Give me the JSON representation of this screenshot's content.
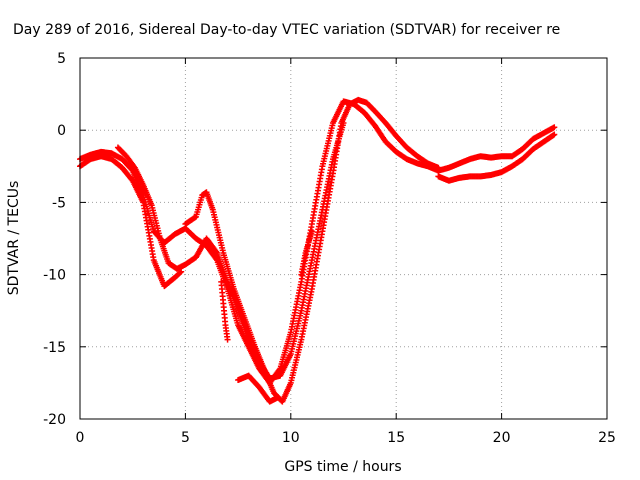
{
  "chart_data": {
    "type": "scatter",
    "title": "Day 289 of 2016, Sidereal Day-to-day VTEC variation (SDTVAR) for receiver re",
    "xlabel": "GPS time / hours",
    "ylabel": "SDTVAR / TECUs",
    "xlim": [
      0,
      25
    ],
    "ylim": [
      -20,
      5
    ],
    "xticks": [
      0,
      5,
      10,
      15,
      20,
      25
    ],
    "yticks": [
      -20,
      -15,
      -10,
      -5,
      0,
      5
    ],
    "grid": true,
    "marker": "+",
    "series": [
      {
        "color": "#ff0000",
        "tracks": [
          [
            [
              0.0,
              -2.0
            ],
            [
              0.5,
              -1.7
            ],
            [
              1.0,
              -1.5
            ],
            [
              1.5,
              -1.6
            ],
            [
              2.0,
              -2.0
            ],
            [
              2.5,
              -2.8
            ],
            [
              3.0,
              -4.5
            ],
            [
              3.5,
              -7.0
            ],
            [
              4.0,
              -7.8
            ],
            [
              4.5,
              -7.2
            ],
            [
              5.0,
              -6.8
            ],
            [
              5.5,
              -7.5
            ],
            [
              6.0,
              -8.0
            ],
            [
              6.5,
              -9.0
            ],
            [
              7.0,
              -11.0
            ],
            [
              7.5,
              -13.5
            ],
            [
              8.0,
              -15.0
            ],
            [
              8.5,
              -16.5
            ],
            [
              9.0,
              -17.5
            ],
            [
              9.5,
              -16.5
            ],
            [
              10.0,
              -14.0
            ],
            [
              10.5,
              -10.5
            ],
            [
              11.0,
              -6.5
            ],
            [
              11.5,
              -2.5
            ],
            [
              12.0,
              0.5
            ],
            [
              12.5,
              2.0
            ],
            [
              13.0,
              1.8
            ],
            [
              13.5,
              1.2
            ],
            [
              14.0,
              0.3
            ],
            [
              14.5,
              -0.8
            ],
            [
              15.0,
              -1.5
            ],
            [
              15.5,
              -2.0
            ],
            [
              16.0,
              -2.3
            ],
            [
              16.5,
              -2.5
            ],
            [
              17.0,
              -2.8
            ],
            [
              17.5,
              -2.6
            ],
            [
              18.0,
              -2.3
            ],
            [
              18.5,
              -2.0
            ],
            [
              19.0,
              -1.8
            ],
            [
              19.5,
              -1.9
            ],
            [
              20.0,
              -1.8
            ],
            [
              20.5,
              -1.8
            ],
            [
              21.0,
              -1.3
            ],
            [
              21.5,
              -0.6
            ],
            [
              22.0,
              -0.2
            ],
            [
              22.5,
              0.2
            ]
          ],
          [
            [
              0.0,
              -2.5
            ],
            [
              0.5,
              -2.0
            ],
            [
              1.0,
              -1.8
            ],
            [
              1.5,
              -2.0
            ],
            [
              2.0,
              -2.6
            ],
            [
              2.5,
              -3.5
            ],
            [
              3.0,
              -5.0
            ],
            [
              3.5,
              -9.0
            ],
            [
              4.0,
              -10.8
            ],
            [
              4.5,
              -10.2
            ],
            [
              4.8,
              -9.8
            ]
          ],
          [
            [
              1.8,
              -1.2
            ],
            [
              2.2,
              -1.8
            ],
            [
              2.6,
              -2.6
            ],
            [
              3.0,
              -3.8
            ],
            [
              3.4,
              -5.2
            ],
            [
              3.8,
              -7.5
            ],
            [
              4.2,
              -9.2
            ],
            [
              4.6,
              -9.6
            ],
            [
              5.0,
              -9.3
            ],
            [
              5.5,
              -8.8
            ],
            [
              6.0,
              -7.5
            ],
            [
              6.5,
              -8.5
            ],
            [
              7.0,
              -10.5
            ],
            [
              7.5,
              -12.5
            ],
            [
              8.0,
              -14.5
            ],
            [
              8.5,
              -16.0
            ],
            [
              9.0,
              -17.2
            ],
            [
              9.5,
              -17.0
            ],
            [
              10.0,
              -15.5
            ],
            [
              10.5,
              -12.5
            ],
            [
              11.0,
              -9.0
            ],
            [
              11.5,
              -5.5
            ],
            [
              12.0,
              -2.0
            ],
            [
              12.5,
              0.5
            ]
          ],
          [
            [
              5.0,
              -6.5
            ],
            [
              5.5,
              -6.0
            ],
            [
              5.8,
              -4.5
            ],
            [
              6.0,
              -4.3
            ],
            [
              6.3,
              -5.5
            ],
            [
              6.8,
              -8.5
            ],
            [
              7.3,
              -11.0
            ],
            [
              7.8,
              -13.0
            ],
            [
              8.3,
              -15.0
            ],
            [
              8.8,
              -16.8
            ],
            [
              9.2,
              -18.2
            ],
            [
              9.6,
              -18.8
            ],
            [
              10.0,
              -17.5
            ],
            [
              10.5,
              -14.5
            ],
            [
              11.0,
              -11.0
            ],
            [
              11.5,
              -7.0
            ],
            [
              12.0,
              -3.0
            ],
            [
              12.4,
              0.5
            ],
            [
              12.8,
              1.8
            ],
            [
              13.2,
              2.1
            ],
            [
              13.6,
              1.9
            ],
            [
              14.0,
              1.3
            ],
            [
              14.5,
              0.5
            ],
            [
              15.0,
              -0.4
            ],
            [
              15.5,
              -1.2
            ],
            [
              16.0,
              -1.8
            ],
            [
              16.5,
              -2.3
            ],
            [
              17.0,
              -2.6
            ]
          ],
          [
            [
              7.5,
              -17.3
            ],
            [
              8.0,
              -17.0
            ],
            [
              8.5,
              -17.8
            ],
            [
              9.0,
              -18.8
            ],
            [
              9.4,
              -18.5
            ]
          ],
          [
            [
              6.7,
              -10.5
            ],
            [
              6.8,
              -12.0
            ],
            [
              6.9,
              -13.5
            ],
            [
              7.0,
              -14.5
            ]
          ],
          [
            [
              10.5,
              -10.0
            ],
            [
              10.7,
              -8.5
            ],
            [
              10.9,
              -7.5
            ],
            [
              11.0,
              -7.0
            ]
          ],
          [
            [
              17.0,
              -3.2
            ],
            [
              17.5,
              -3.5
            ],
            [
              18.0,
              -3.3
            ],
            [
              18.5,
              -3.2
            ],
            [
              19.0,
              -3.2
            ],
            [
              19.5,
              -3.1
            ],
            [
              20.0,
              -2.9
            ],
            [
              20.5,
              -2.5
            ],
            [
              21.0,
              -2.0
            ],
            [
              21.5,
              -1.3
            ],
            [
              22.0,
              -0.8
            ],
            [
              22.5,
              -0.3
            ]
          ]
        ]
      }
    ]
  }
}
